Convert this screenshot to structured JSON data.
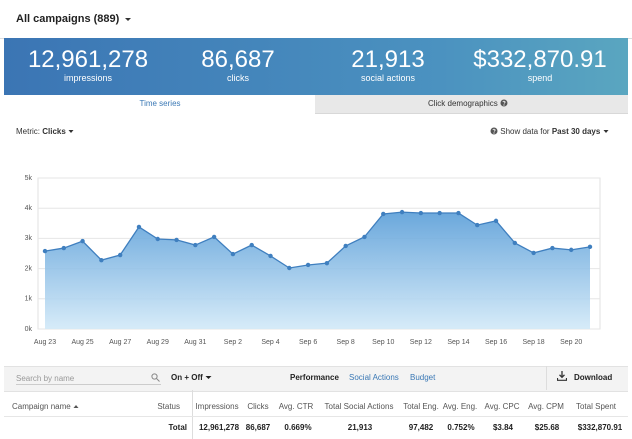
{
  "header": {
    "title": "All campaigns (889)"
  },
  "stats": [
    {
      "value": "12,961,278",
      "label": "impressions"
    },
    {
      "value": "86,687",
      "label": "clicks"
    },
    {
      "value": "21,913",
      "label": "social actions"
    },
    {
      "value": "$332,870.91",
      "label": "spend"
    }
  ],
  "tabs": [
    "Time series",
    "Click demographics"
  ],
  "metric": {
    "label": "Metric:",
    "value": "Clicks"
  },
  "range": {
    "label": "Show data for",
    "value": "Past 30 days"
  },
  "chart_data": {
    "type": "area",
    "categories": [
      "Aug 23",
      null,
      "Aug 25",
      null,
      "Aug 27",
      null,
      "Aug 29",
      null,
      "Aug 31",
      null,
      "Sep 2",
      null,
      "Sep 4",
      null,
      "Sep 6",
      null,
      "Sep 8",
      null,
      "Sep 10",
      null,
      "Sep 12",
      null,
      "Sep 14",
      null,
      "Sep 16",
      null,
      "Sep 18",
      null,
      "Sep 20",
      null
    ],
    "values": [
      2580,
      2680,
      2910,
      2280,
      2450,
      3380,
      2980,
      2950,
      2780,
      3050,
      2480,
      2780,
      2420,
      2020,
      2120,
      2180,
      2750,
      3050,
      3810,
      3870,
      3840,
      3840,
      3840,
      3440,
      3580,
      2850,
      2520,
      2680,
      2620,
      2720
    ],
    "color": "#3f7fbf",
    "ylim": [
      0,
      5000
    ],
    "yticks": [
      {
        "value": 0,
        "label": "0k"
      },
      {
        "value": 1000,
        "label": "1k"
      },
      {
        "value": 2000,
        "label": "2k"
      },
      {
        "value": 3000,
        "label": "3k"
      },
      {
        "value": 4000,
        "label": "4k"
      },
      {
        "value": 5000,
        "label": "5k"
      }
    ],
    "grid": true
  },
  "toolbar": {
    "search_placeholder": "Search by name",
    "filter": "On + Off",
    "views": [
      "Performance",
      "Social Actions",
      "Budget"
    ],
    "download": "Download"
  },
  "table": {
    "columns": [
      "Campaign name",
      "Status",
      "Impressions",
      "Clicks",
      "Avg. CTR",
      "Total Social Actions",
      "Total Eng.",
      "Avg. Eng.",
      "Avg. CPC",
      "Avg. CPM",
      "Total Spent"
    ],
    "rows": [
      {
        "label": "Total",
        "cells": [
          "12,961,278",
          "86,687",
          "0.669%",
          "21,913",
          "97,482",
          "0.752%",
          "$3.84",
          "$25.68",
          "$332,870.91"
        ]
      }
    ]
  }
}
